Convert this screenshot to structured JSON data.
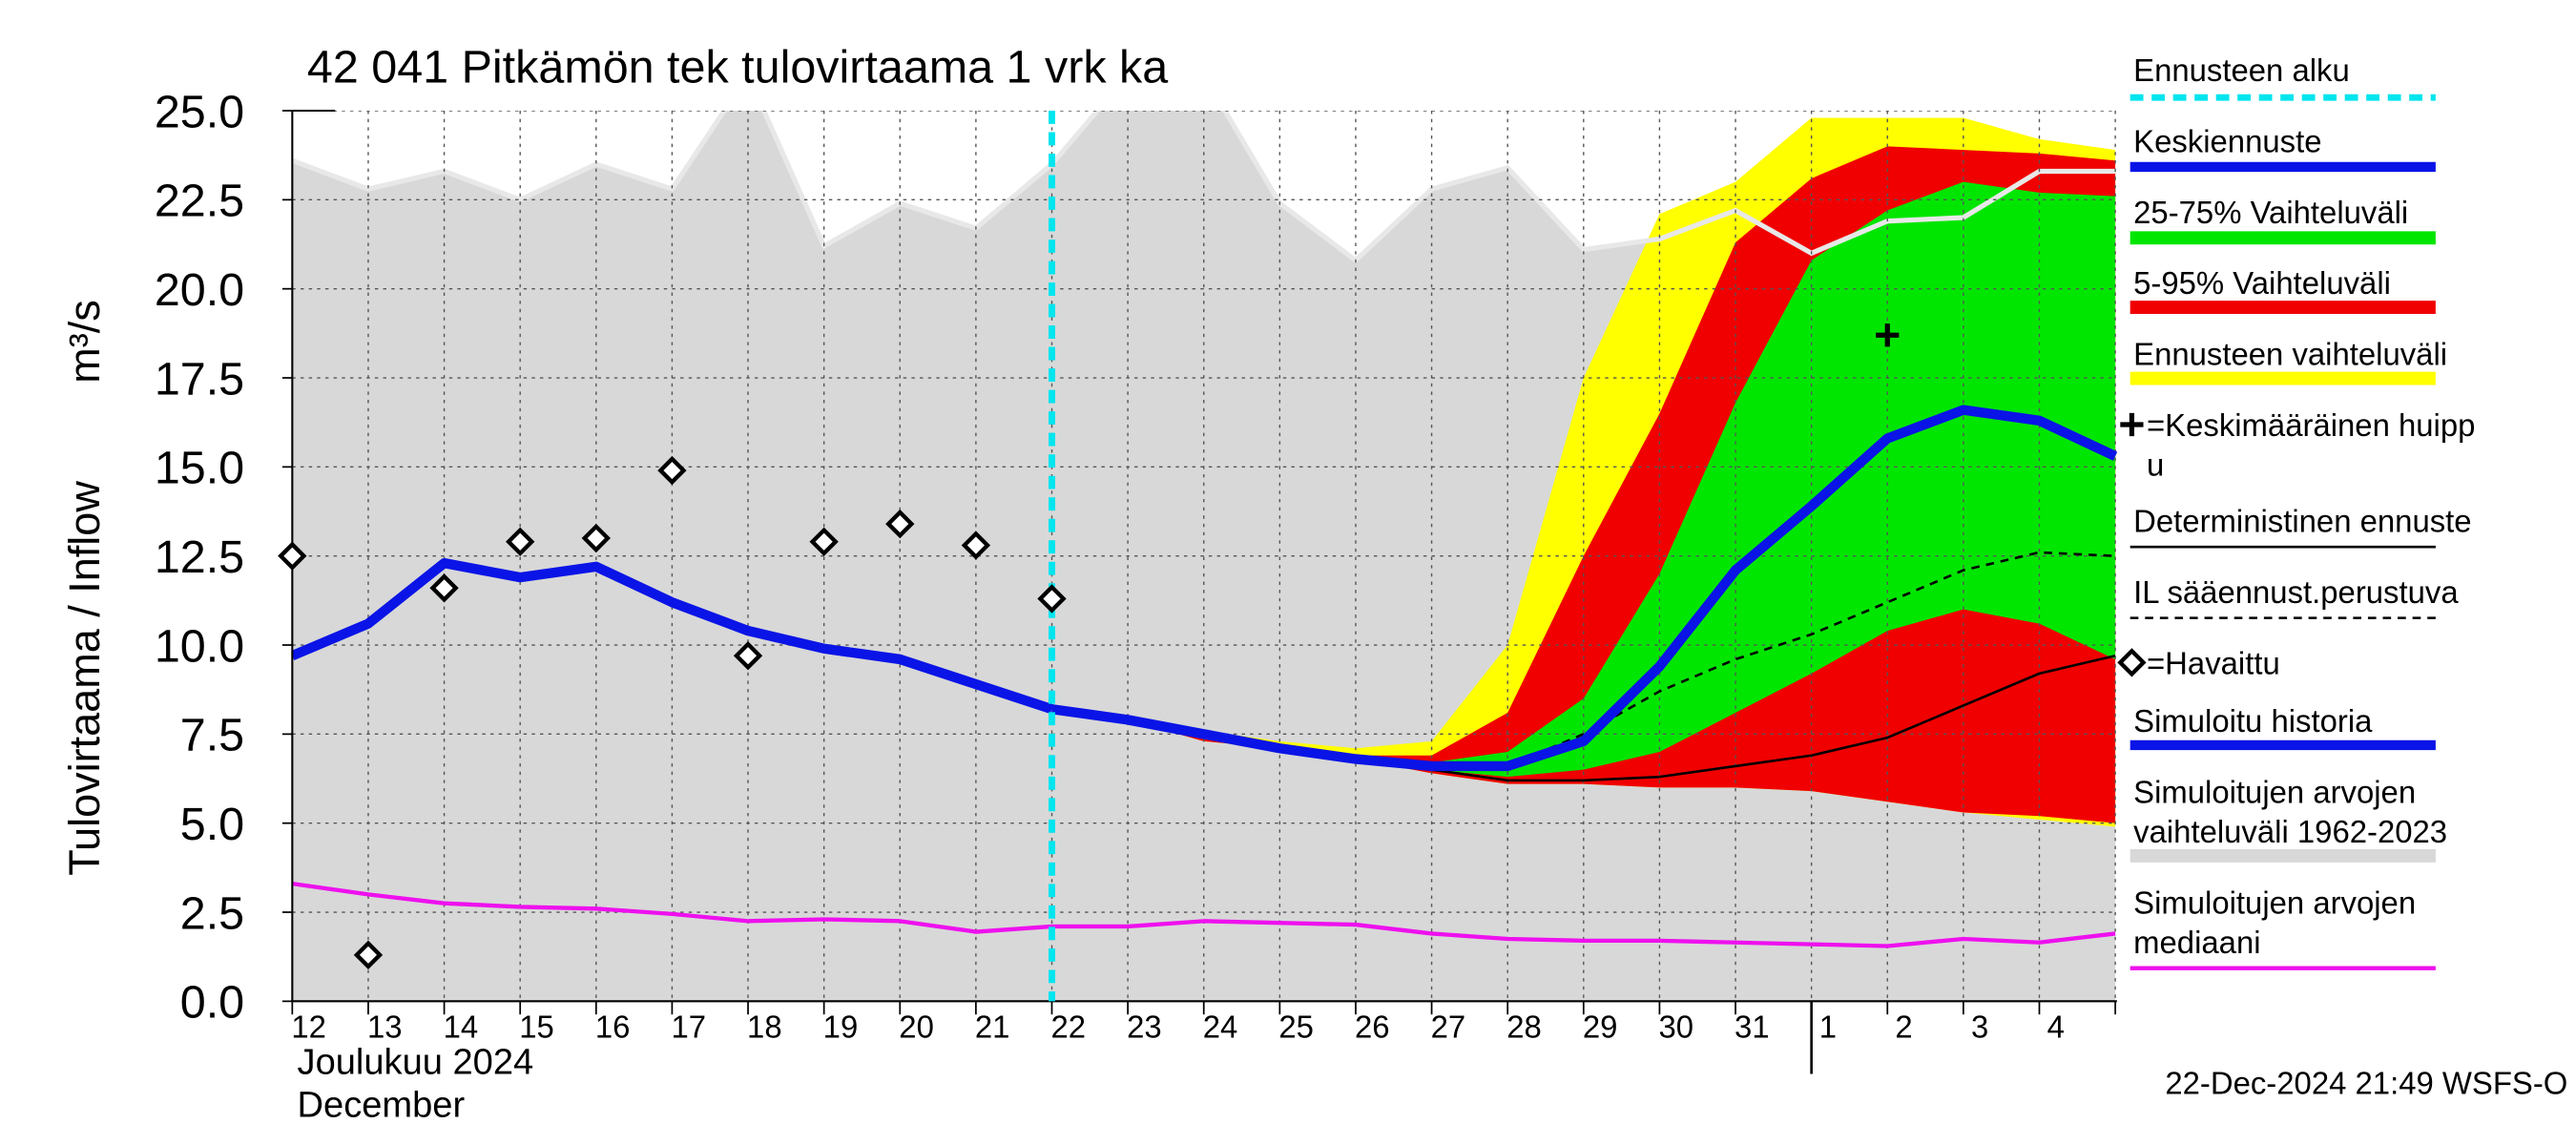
{
  "chart_data": {
    "type": "line",
    "title": "42 041 Pitkämön tek tulovirtaama 1 vrk ka",
    "y_label": "Tulovirtaama / Inflow",
    "y_unit": "m³/s",
    "x_month_label": "Joulukuu  2024",
    "x_month_label_en": "December",
    "footer": "22-Dec-2024 21:49 WSFS-O",
    "categories": [
      "12",
      "13",
      "14",
      "15",
      "16",
      "17",
      "18",
      "19",
      "20",
      "21",
      "22",
      "23",
      "24",
      "25",
      "26",
      "27",
      "28",
      "29",
      "30",
      "31",
      "1",
      "2",
      "3",
      "4",
      null
    ],
    "month_break": 20,
    "ylim": [
      0,
      25
    ],
    "yticks": [
      {
        "value": 0,
        "label": "0.0"
      },
      {
        "value": 2.5,
        "label": "2.5"
      },
      {
        "value": 5,
        "label": "5.0"
      },
      {
        "value": 7.5,
        "label": "7.5"
      },
      {
        "value": 10,
        "label": "10.0"
      },
      {
        "value": 12.5,
        "label": "12.5"
      },
      {
        "value": 15,
        "label": "15.0"
      },
      {
        "value": 17.5,
        "label": "17.5"
      },
      {
        "value": 20,
        "label": "20.0"
      },
      {
        "value": 22.5,
        "label": "22.5"
      },
      {
        "value": 25,
        "label": "25.0"
      }
    ],
    "grid": true,
    "series": [
      {
        "name": "Ennusteen alku",
        "style": "vline",
        "color": "#00e5ee",
        "x": 10
      },
      {
        "name": "Keskiennuste",
        "style": "line",
        "color": "#0a14e6",
        "width": 6,
        "values": [
          null,
          null,
          null,
          null,
          null,
          null,
          null,
          null,
          null,
          null,
          8.2,
          7.9,
          7.5,
          7.1,
          6.8,
          6.6,
          6.6,
          7.3,
          9.4,
          12.1,
          13.9,
          15.8,
          16.6,
          16.3,
          15.3
        ]
      },
      {
        "name": "25-75% Vaihteluväli",
        "style": "band",
        "color": "#00e600",
        "upper": [
          null,
          null,
          null,
          null,
          null,
          null,
          null,
          null,
          null,
          null,
          8.2,
          7.9,
          7.5,
          7.1,
          6.8,
          6.7,
          7.0,
          8.5,
          12.0,
          16.8,
          20.8,
          22.2,
          23.0,
          22.7,
          22.6
        ],
        "lower": [
          null,
          null,
          null,
          null,
          null,
          null,
          null,
          null,
          null,
          null,
          8.2,
          7.9,
          7.5,
          7.1,
          6.8,
          6.5,
          6.3,
          6.5,
          7.0,
          8.1,
          9.2,
          10.4,
          11.0,
          10.6,
          9.6
        ]
      },
      {
        "name": "5-95% Vaihteluväli",
        "style": "band",
        "color": "#f00000",
        "upper": [
          null,
          null,
          null,
          null,
          null,
          null,
          null,
          null,
          null,
          null,
          8.2,
          7.9,
          7.5,
          7.2,
          6.9,
          6.9,
          8.1,
          12.5,
          16.5,
          21.3,
          23.1,
          24.0,
          23.9,
          23.8,
          23.6
        ],
        "lower": [
          null,
          null,
          null,
          null,
          null,
          null,
          null,
          null,
          null,
          null,
          8.2,
          7.9,
          7.3,
          7.1,
          6.8,
          6.4,
          6.1,
          6.1,
          6.0,
          6.0,
          5.9,
          5.6,
          5.3,
          5.2,
          5.0
        ]
      },
      {
        "name": "Ennusteen vaihteluväli",
        "style": "band",
        "color": "#ffff00",
        "upper": [
          null,
          null,
          null,
          null,
          null,
          null,
          null,
          null,
          null,
          null,
          8.2,
          7.9,
          7.6,
          7.3,
          7.1,
          7.3,
          10.0,
          17.5,
          22.1,
          23.0,
          24.8,
          24.8,
          24.8,
          24.2,
          23.9
        ],
        "lower": [
          null,
          null,
          null,
          null,
          null,
          null,
          null,
          null,
          null,
          null,
          8.2,
          7.9,
          7.3,
          7.1,
          6.8,
          6.4,
          6.1,
          6.1,
          6.0,
          6.0,
          5.9,
          5.6,
          5.3,
          5.1,
          4.9
        ]
      },
      {
        "name": [
          "=Keskimääräinen huipp",
          "u"
        ],
        "style": "cross",
        "color": "#000000",
        "values": [
          null,
          null,
          null,
          null,
          null,
          null,
          null,
          null,
          null,
          null,
          null,
          null,
          null,
          null,
          null,
          null,
          null,
          null,
          null,
          null,
          null,
          18.7,
          null,
          null,
          null
        ]
      },
      {
        "name": "Deterministinen ennuste",
        "style": "line",
        "color": "#000000",
        "width": 1.5,
        "values": [
          null,
          null,
          null,
          null,
          null,
          null,
          null,
          null,
          null,
          null,
          8.2,
          7.9,
          7.5,
          7.1,
          6.8,
          6.5,
          6.2,
          6.2,
          6.3,
          6.6,
          6.9,
          7.4,
          8.3,
          9.2,
          9.7
        ]
      },
      {
        "name": "IL sääennust.perustuva",
        "style": "dashed",
        "color": "#000000",
        "width": 1.5,
        "values": [
          null,
          null,
          null,
          null,
          null,
          null,
          null,
          null,
          null,
          null,
          8.3,
          7.9,
          7.5,
          7.1,
          6.8,
          6.6,
          6.6,
          7.5,
          8.7,
          9.6,
          10.3,
          11.2,
          12.1,
          12.6,
          12.5
        ]
      },
      {
        "name": "=Havaittu",
        "style": "diamond",
        "color": "#000000",
        "values": [
          12.5,
          1.3,
          11.6,
          12.9,
          13.0,
          14.9,
          9.7,
          12.9,
          13.4,
          12.8,
          11.3,
          null,
          null,
          null,
          null,
          null,
          null,
          null,
          null,
          null,
          null,
          null,
          null,
          null,
          null
        ]
      },
      {
        "name": "Simuloitu historia",
        "style": "line",
        "color": "#0a14e6",
        "width": 6,
        "values": [
          9.7,
          10.6,
          12.3,
          11.9,
          12.2,
          11.2,
          10.4,
          9.9,
          9.6,
          8.9,
          8.2,
          null,
          null,
          null,
          null,
          null,
          null,
          null,
          null,
          null,
          null,
          null,
          null,
          null,
          null
        ]
      },
      {
        "name": [
          "Simuloitujen arvojen",
          "vaihteluväli 1962-2023"
        ],
        "style": "area",
        "color": "#d8d8d8",
        "upper": [
          23.6,
          22.8,
          23.3,
          22.5,
          23.5,
          22.8,
          26,
          21.2,
          22.4,
          21.7,
          23.5,
          26,
          26,
          22.4,
          20.8,
          22.8,
          23.4,
          21.1,
          21.4,
          22.2,
          21.0,
          21.9,
          22.0,
          23.3,
          23.3
        ]
      },
      {
        "name": [
          "Simuloitujen arvojen",
          "mediaani"
        ],
        "style": "line",
        "color": "#ee10ee",
        "width": 2.5,
        "values": [
          3.3,
          3.0,
          2.75,
          2.65,
          2.6,
          2.45,
          2.25,
          2.3,
          2.25,
          1.95,
          2.1,
          2.1,
          2.25,
          2.2,
          2.15,
          1.9,
          1.75,
          1.7,
          1.7,
          1.65,
          1.6,
          1.55,
          1.75,
          1.65,
          1.9
        ]
      }
    ]
  }
}
